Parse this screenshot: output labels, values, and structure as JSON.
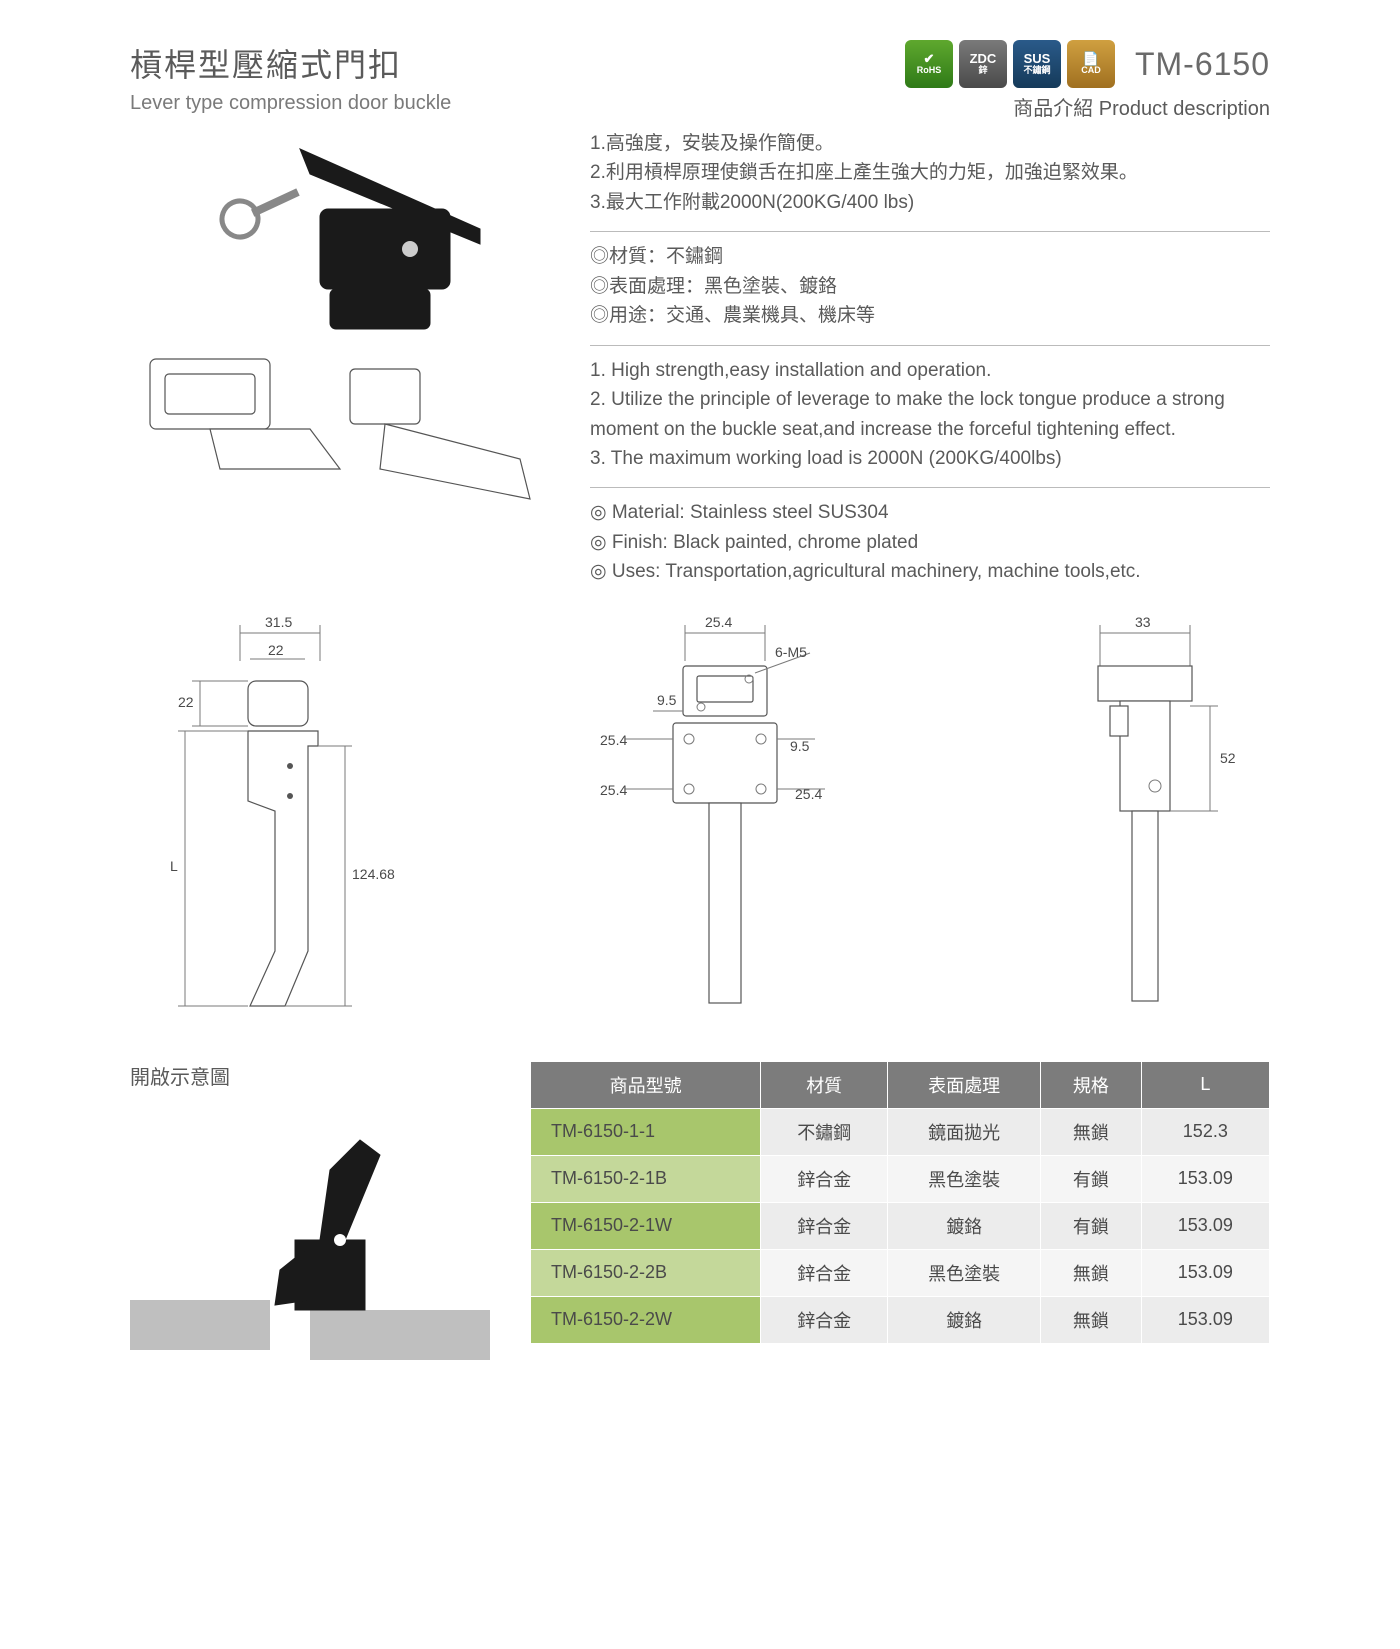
{
  "header": {
    "title_cn": "槓桿型壓縮式門扣",
    "title_en": "Lever type compression door buckle",
    "model": "TM-6150",
    "badges": [
      {
        "line1": "✔",
        "line2": "RoHS",
        "cls": "badge-rohs"
      },
      {
        "line1": "ZDC",
        "line2": "鋅",
        "cls": "badge-zdc"
      },
      {
        "line1": "SUS",
        "line2": "不鏽鋼",
        "cls": "badge-sus"
      },
      {
        "line1": "📄",
        "line2": "CAD",
        "cls": "badge-cad"
      }
    ]
  },
  "desc": {
    "heading": "商品介紹 Product description",
    "cn_list": [
      "1.高強度，安裝及操作簡便。",
      "2.利用槓桿原理使鎖舌在扣座上產生強大的力矩，加強迫緊效果。",
      "3.最大工作附載2000N(200KG/400 lbs)"
    ],
    "cn_spec": [
      "◎材質：不鏽鋼",
      "◎表面處理：黑色塗裝、鍍鉻",
      "◎用途：交通、農業機具、機床等"
    ],
    "en_list": [
      "1. High strength,easy installation and operation.",
      "2. Utilize the principle of leverage to make the lock tongue produce a strong moment on the buckle seat,and increase the forceful tightening effect.",
      "3. The maximum working load is 2000N (200KG/400lbs)"
    ],
    "en_spec": [
      "◎ Material: Stainless steel SUS304",
      "◎ Finish: Black painted, chrome plated",
      "◎ Uses: Transportation,agricultural machinery, machine tools,etc."
    ]
  },
  "drawings": {
    "view1": {
      "d_31_5": "31.5",
      "d_22_top": "22",
      "d_22_left": "22",
      "d_L": "L",
      "d_124_68": "124.68"
    },
    "view2": {
      "d_25_4_top": "25.4",
      "d_6M5": "6-M5",
      "d_9_5_l": "9.5",
      "d_9_5_r": "9.5",
      "d_25_4_lu": "25.4",
      "d_25_4_ll": "25.4",
      "d_25_4_r": "25.4"
    },
    "view3": {
      "d_33": "33",
      "d_52": "52"
    }
  },
  "open_diagram_title": "開啟示意圖",
  "table": {
    "headers": [
      "商品型號",
      "材質",
      "表面處理",
      "規格",
      "L"
    ],
    "rows": [
      [
        "TM-6150-1-1",
        "不鏽鋼",
        "鏡面拋光",
        "無鎖",
        "152.3"
      ],
      [
        "TM-6150-2-1B",
        "鋅合金",
        "黑色塗裝",
        "有鎖",
        "153.09"
      ],
      [
        "TM-6150-2-1W",
        "鋅合金",
        "鍍鉻",
        "有鎖",
        "153.09"
      ],
      [
        "TM-6150-2-2B",
        "鋅合金",
        "黑色塗裝",
        "無鎖",
        "153.09"
      ],
      [
        "TM-6150-2-2W",
        "鋅合金",
        "鍍鉻",
        "無鎖",
        "153.09"
      ]
    ]
  },
  "colors": {
    "table_header_bg": "#7c7c7c",
    "model_cell_bg": "#a8c66c",
    "model_cell_bg_alt": "#c4d89a",
    "cell_bg": "#ececec",
    "cell_bg_alt": "#f5f5f5"
  }
}
